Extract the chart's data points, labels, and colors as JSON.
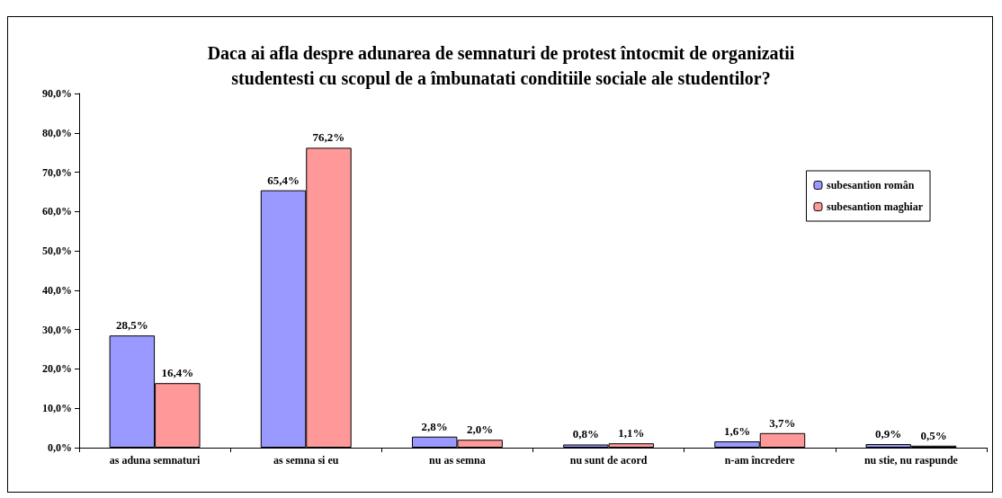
{
  "chart_data": {
    "type": "bar",
    "title": "Daca ai afla despre adunarea de semnaturi de protest întocmit de organizatii\nstudentesti cu scopul de a îmbunatati conditiile sociale ale studentilor?",
    "categories": [
      "as aduna semnaturi",
      "as semna si eu",
      "nu as semna",
      "nu sunt de acord",
      "n-am încredere",
      "nu stie, nu raspunde"
    ],
    "series": [
      {
        "name": "subesantion român",
        "color": "#9999ff",
        "values": [
          28.5,
          65.4,
          2.8,
          0.8,
          1.6,
          0.9
        ],
        "value_labels": [
          "28,5%",
          "65,4%",
          "2,8%",
          "0,8%",
          "1,6%",
          "0,9%"
        ]
      },
      {
        "name": "subesantion maghiar",
        "color": "#ff9999",
        "values": [
          16.4,
          76.2,
          2.0,
          1.1,
          3.7,
          0.5
        ],
        "value_labels": [
          "16,4%",
          "76,2%",
          "2,0%",
          "1,1%",
          "3,7%",
          "0,5%"
        ]
      }
    ],
    "ylim": [
      0,
      90
    ],
    "yticks": [
      {
        "value": 0,
        "label": "0,0%"
      },
      {
        "value": 10,
        "label": "10,0%"
      },
      {
        "value": 20,
        "label": "20,0%"
      },
      {
        "value": 30,
        "label": "30,0%"
      },
      {
        "value": 40,
        "label": "40,0%"
      },
      {
        "value": 50,
        "label": "50,0%"
      },
      {
        "value": 60,
        "label": "60,0%"
      },
      {
        "value": 70,
        "label": "70,0%"
      },
      {
        "value": 80,
        "label": "80,0%"
      },
      {
        "value": 90,
        "label": "90,0%"
      }
    ],
    "grid": false,
    "legend": "right"
  }
}
